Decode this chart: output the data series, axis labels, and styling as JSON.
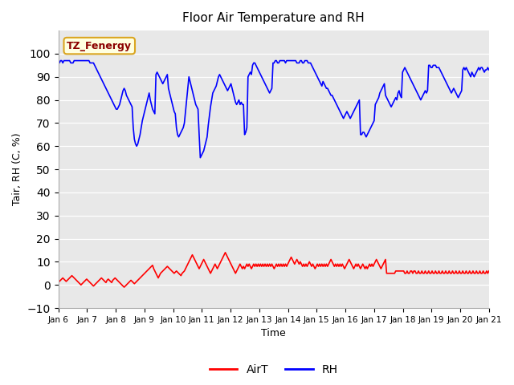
{
  "title": "Floor Air Temperature and RH",
  "ylabel": "Tair, RH (C, %)",
  "xlabel": "Time",
  "ylim": [
    -10,
    110
  ],
  "yticks": [
    -10,
    0,
    10,
    20,
    30,
    40,
    50,
    60,
    70,
    80,
    90,
    100
  ],
  "annotation_text": "TZ_Fenergy",
  "bg_color": "#e8e8e8",
  "line_color_rh": "blue",
  "line_color_airt": "red",
  "x_tick_labels": [
    "Jan 6",
    "Jan 7",
    "Jan 8",
    "Jan 9",
    "Jan 10",
    "Jan 11",
    "Jan 12",
    "Jan 13",
    "Jan 14",
    "Jan 15",
    "Jan 16",
    "Jan 17",
    "Jan 18",
    "Jan 19",
    "Jan 20",
    "Jan 21"
  ],
  "rh_data": [
    96,
    96,
    97,
    97,
    96,
    97,
    97,
    97,
    97,
    97,
    97,
    96,
    96,
    96,
    97,
    97,
    97,
    97,
    97,
    97,
    97,
    97,
    97,
    97,
    97,
    97,
    97,
    97,
    96,
    96,
    96,
    96,
    95,
    94,
    93,
    92,
    91,
    90,
    89,
    88,
    87,
    86,
    85,
    84,
    83,
    82,
    81,
    80,
    79,
    78,
    77,
    76,
    76,
    77,
    78,
    80,
    82,
    84,
    85,
    84,
    82,
    81,
    80,
    79,
    78,
    77,
    68,
    63,
    61,
    60,
    61,
    63,
    65,
    68,
    71,
    73,
    75,
    77,
    79,
    81,
    83,
    80,
    78,
    76,
    75,
    74,
    91,
    92,
    91,
    90,
    89,
    88,
    87,
    88,
    89,
    90,
    91,
    85,
    83,
    81,
    79,
    77,
    75,
    74,
    68,
    65,
    64,
    65,
    66,
    67,
    68,
    70,
    75,
    80,
    85,
    90,
    88,
    86,
    84,
    82,
    80,
    78,
    77,
    76,
    65,
    55,
    56,
    57,
    58,
    60,
    62,
    64,
    69,
    73,
    77,
    80,
    83,
    84,
    85,
    86,
    88,
    90,
    91,
    90,
    89,
    88,
    87,
    86,
    85,
    84,
    85,
    86,
    87,
    85,
    83,
    81,
    79,
    78,
    79,
    80,
    78,
    79,
    78,
    78,
    65,
    66,
    68,
    90,
    91,
    92,
    91,
    95,
    96,
    96,
    95,
    94,
    93,
    92,
    91,
    90,
    89,
    88,
    87,
    86,
    85,
    84,
    83,
    84,
    85,
    96,
    96,
    97,
    97,
    96,
    96,
    97,
    97,
    97,
    97,
    97,
    96,
    97,
    97,
    97,
    97,
    97,
    97,
    97,
    97,
    97,
    96,
    96,
    96,
    97,
    97,
    96,
    96,
    97,
    97,
    97,
    96,
    96,
    96,
    95,
    94,
    93,
    92,
    91,
    90,
    89,
    88,
    87,
    86,
    88,
    87,
    86,
    85,
    85,
    84,
    83,
    82,
    82,
    81,
    80,
    79,
    78,
    77,
    76,
    75,
    74,
    73,
    72,
    73,
    74,
    75,
    74,
    73,
    72,
    73,
    74,
    75,
    76,
    77,
    78,
    79,
    80,
    65,
    65,
    66,
    66,
    65,
    64,
    65,
    66,
    67,
    68,
    69,
    70,
    71,
    78,
    79,
    80,
    81,
    83,
    84,
    85,
    86,
    87,
    82,
    81,
    80,
    79,
    78,
    77,
    78,
    79,
    80,
    81,
    80,
    83,
    84,
    82,
    81,
    92,
    93,
    94,
    93,
    92,
    91,
    90,
    89,
    88,
    87,
    86,
    85,
    84,
    83,
    82,
    81,
    80,
    81,
    82,
    83,
    84,
    83,
    84,
    95,
    95,
    94,
    94,
    95,
    95,
    95,
    94,
    94,
    94,
    93,
    92,
    91,
    90,
    89,
    88,
    87,
    86,
    85,
    84,
    83,
    84,
    85,
    84,
    83,
    82,
    81,
    82,
    83,
    84,
    93,
    94,
    93,
    94,
    93,
    92,
    91,
    90,
    92,
    91,
    90,
    91,
    92,
    93,
    94,
    93,
    94,
    94,
    93,
    92,
    93,
    93,
    94,
    93
  ],
  "airt_data": [
    1,
    1.5,
    2,
    2.5,
    3,
    2.5,
    2,
    1.5,
    2,
    2.5,
    3,
    3.5,
    4,
    3.5,
    3,
    2.5,
    2,
    1.5,
    1,
    0.5,
    0,
    0.5,
    1,
    1.5,
    2,
    2.5,
    2,
    1.5,
    1,
    0.5,
    0,
    -0.5,
    0,
    0.5,
    1,
    1.5,
    2,
    2.5,
    3,
    2.5,
    2,
    1.5,
    1,
    2,
    2.5,
    2,
    1.5,
    1,
    2,
    2.5,
    3,
    2.5,
    2,
    1.5,
    1,
    0.5,
    0,
    -0.5,
    -1,
    -0.5,
    0,
    0.5,
    1,
    1.5,
    2,
    1.5,
    1,
    0.5,
    1,
    1.5,
    2,
    2.5,
    3,
    3.5,
    4,
    4.5,
    5,
    5.5,
    6,
    6.5,
    7,
    7.5,
    8,
    8.5,
    7,
    6,
    5,
    4,
    3,
    4,
    5,
    5.5,
    6,
    6.5,
    7,
    7.5,
    8,
    7.5,
    7,
    6.5,
    6,
    5.5,
    5,
    5.5,
    6,
    5.5,
    5,
    4.5,
    4,
    5,
    5.5,
    6,
    7,
    8,
    9,
    10,
    11,
    12,
    13,
    12,
    11,
    10,
    9,
    8,
    7,
    8,
    9,
    10,
    11,
    10,
    9,
    8,
    7,
    6,
    5,
    6,
    7,
    8,
    9,
    8,
    7,
    8,
    9,
    10,
    11,
    12,
    13,
    14,
    13,
    12,
    11,
    10,
    9,
    8,
    7,
    6,
    5,
    6,
    7,
    8,
    9,
    8,
    7,
    8,
    7,
    8,
    9,
    8,
    9,
    8,
    7,
    8,
    9,
    8,
    9,
    8,
    9,
    8,
    9,
    8,
    9,
    8,
    9,
    8,
    9,
    8,
    9,
    8,
    9,
    8,
    7,
    8,
    9,
    8,
    9,
    8,
    9,
    8,
    9,
    8,
    9,
    8,
    9,
    10,
    11,
    12,
    11,
    10,
    9,
    10,
    11,
    10,
    9,
    10,
    9,
    8,
    9,
    8,
    9,
    8,
    9,
    10,
    9,
    8,
    9,
    8,
    7,
    8,
    9,
    8,
    9,
    8,
    9,
    8,
    9,
    8,
    9,
    8,
    9,
    10,
    11,
    10,
    9,
    8,
    9,
    8,
    9,
    8,
    9,
    8,
    9,
    8,
    7,
    8,
    9,
    10,
    11,
    10,
    9,
    8,
    7,
    8,
    9,
    8,
    9,
    8,
    7,
    8,
    9,
    8,
    7,
    8,
    7,
    8,
    9,
    8,
    9,
    8,
    9,
    10,
    11,
    10,
    9,
    8,
    7,
    8,
    9,
    10,
    11,
    5,
    5,
    5,
    5,
    5,
    5,
    5,
    5,
    6,
    6,
    6,
    6,
    6,
    6,
    6,
    6,
    5,
    5,
    6,
    5,
    5,
    6,
    6,
    5,
    6,
    6,
    5,
    5,
    6,
    5,
    5,
    6,
    5,
    5,
    6,
    5,
    5,
    6,
    5,
    5,
    6,
    5,
    5,
    6,
    5,
    5,
    6,
    5,
    5,
    6,
    5,
    5,
    6,
    5,
    5,
    6,
    5,
    5,
    6,
    5,
    5,
    6,
    5,
    5,
    6,
    5,
    5,
    6,
    5,
    5,
    6,
    5,
    5,
    6,
    5,
    5,
    6,
    5,
    5,
    6,
    5,
    5,
    6,
    5,
    5,
    6,
    5,
    5,
    6,
    5,
    6
  ]
}
